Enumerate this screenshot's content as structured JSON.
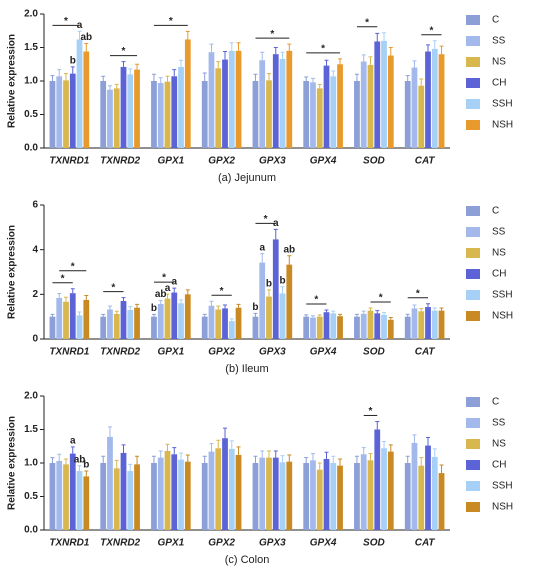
{
  "chart_data": [
    {
      "type": "bar",
      "title": "(a) Jejunum",
      "ylabel": "Relative expression",
      "categories": [
        "TXNRD1",
        "TXNRD2",
        "GPX1",
        "GPX2",
        "GPX3",
        "GPX4",
        "SOD",
        "CAT"
      ],
      "ylim": [
        0,
        2
      ],
      "yticks": [
        {
          "value": 0,
          "label": "0.0"
        },
        {
          "value": 0.5,
          "label": "0.5"
        },
        {
          "value": 1,
          "label": "1.0"
        },
        {
          "value": 1.5,
          "label": "1.5"
        },
        {
          "value": 2,
          "label": "2.0"
        }
      ],
      "series": [
        {
          "name": "C",
          "color": "#8c9fd6",
          "values": [
            1.0,
            1.0,
            1.0,
            1.0,
            1.0,
            1.0,
            1.0,
            1.0
          ],
          "errors": [
            0.08,
            0.07,
            0.1,
            0.12,
            0.1,
            0.06,
            0.1,
            0.08
          ]
        },
        {
          "name": "SS",
          "color": "#a3b9ec",
          "values": [
            1.07,
            0.87,
            0.97,
            1.43,
            1.31,
            0.98,
            1.29,
            1.2
          ],
          "errors": [
            0.1,
            0.06,
            0.08,
            0.12,
            0.12,
            0.06,
            0.1,
            0.1
          ]
        },
        {
          "name": "NS",
          "color": "#d8b84e",
          "values": [
            1.01,
            0.89,
            0.99,
            1.19,
            1.01,
            0.89,
            1.24,
            0.93
          ],
          "errors": [
            0.1,
            0.06,
            0.08,
            0.1,
            0.1,
            0.06,
            0.12,
            0.1
          ]
        },
        {
          "name": "CH",
          "color": "#5b63d6",
          "values": [
            1.11,
            1.21,
            1.07,
            1.32,
            1.4,
            1.23,
            1.59,
            1.44
          ],
          "errors": [
            0.1,
            0.08,
            0.1,
            0.12,
            0.1,
            0.08,
            0.12,
            0.1
          ]
        },
        {
          "name": "SSH",
          "color": "#a6d0f5",
          "values": [
            1.62,
            1.1,
            1.21,
            1.45,
            1.33,
            1.07,
            1.6,
            1.48
          ],
          "errors": [
            0.12,
            0.08,
            0.1,
            0.12,
            0.1,
            0.08,
            0.12,
            0.12
          ]
        },
        {
          "name": "NSH",
          "color": "#e89a2c",
          "values": [
            1.44,
            1.17,
            1.62,
            1.45,
            1.45,
            1.25,
            1.38,
            1.4
          ],
          "errors": [
            0.12,
            0.08,
            0.12,
            0.12,
            0.1,
            0.08,
            0.12,
            0.12
          ]
        }
      ],
      "annotations": [
        {
          "text": "*",
          "category": "TXNRD1",
          "from": "C",
          "to": "SSH"
        },
        {
          "text": "a",
          "category": "TXNRD1",
          "series": "SSH"
        },
        {
          "text": "ab",
          "category": "TXNRD1",
          "series": "NSH"
        },
        {
          "text": "b",
          "category": "TXNRD1",
          "series": "CH"
        },
        {
          "text": "*",
          "category": "TXNRD2",
          "from": "SS",
          "to": "NSH"
        },
        {
          "text": "*",
          "category": "GPX1",
          "from": "C",
          "to": "NSH"
        },
        {
          "text": "*",
          "category": "GPX3",
          "from": "C",
          "to": "NSH"
        },
        {
          "text": "*",
          "category": "GPX4",
          "from": "C",
          "to": "NSH"
        },
        {
          "text": "*",
          "category": "SOD",
          "from": "C",
          "to": "CH"
        },
        {
          "text": "*",
          "category": "CAT",
          "from": "NS",
          "to": "NSH"
        }
      ]
    },
    {
      "type": "bar",
      "title": "(b) Ileum",
      "ylabel": "Relative expression",
      "categories": [
        "TXNRD1",
        "TXNRD2",
        "GPX1",
        "GPX2",
        "GPX3",
        "GPX4",
        "SOD",
        "CAT"
      ],
      "ylim": [
        0,
        6
      ],
      "yticks": [
        0,
        2,
        4,
        6
      ],
      "series": [
        {
          "name": "C",
          "color": "#8c9fd6",
          "values": [
            1.0,
            1.0,
            1.0,
            1.0,
            1.0,
            1.0,
            1.0,
            1.0
          ],
          "errors": [
            0.1,
            0.1,
            0.1,
            0.1,
            0.15,
            0.08,
            0.1,
            0.1
          ]
        },
        {
          "name": "SS",
          "color": "#a3b9ec",
          "values": [
            1.84,
            1.32,
            1.57,
            1.49,
            3.42,
            0.96,
            1.13,
            1.37
          ],
          "errors": [
            0.2,
            0.15,
            0.15,
            0.2,
            0.4,
            0.08,
            0.12,
            0.15
          ]
        },
        {
          "name": "NS",
          "color": "#d8b84e",
          "values": [
            1.67,
            1.12,
            1.81,
            1.32,
            1.9,
            1.0,
            1.27,
            1.24
          ],
          "errors": [
            0.2,
            0.12,
            0.2,
            0.15,
            0.3,
            0.08,
            0.12,
            0.12
          ]
        },
        {
          "name": "CH",
          "color": "#5b63d6",
          "values": [
            2.05,
            1.7,
            2.08,
            1.37,
            4.46,
            1.2,
            1.15,
            1.43
          ],
          "errors": [
            0.2,
            0.15,
            0.2,
            0.15,
            0.45,
            0.1,
            0.12,
            0.15
          ]
        },
        {
          "name": "SSH",
          "color": "#a6d0f5",
          "values": [
            1.06,
            1.3,
            1.6,
            0.8,
            2.04,
            1.15,
            1.08,
            1.27
          ],
          "errors": [
            0.15,
            0.15,
            0.15,
            0.1,
            0.3,
            0.1,
            0.1,
            0.12
          ]
        },
        {
          "name": "NSH",
          "color": "#c98a24",
          "values": [
            1.75,
            1.4,
            2.0,
            1.4,
            3.33,
            1.02,
            0.86,
            1.27
          ],
          "errors": [
            0.2,
            0.15,
            0.2,
            0.15,
            0.4,
            0.08,
            0.1,
            0.12
          ]
        }
      ],
      "annotations": [
        {
          "text": "*",
          "category": "TXNRD1",
          "from": "C",
          "to": "CH"
        },
        {
          "text": "*",
          "category": "TXNRD1",
          "from": "SS",
          "to": "NSH"
        },
        {
          "text": "*",
          "category": "TXNRD2",
          "from": "C",
          "to": "CH"
        },
        {
          "text": "*",
          "category": "GPX1",
          "from": "C",
          "to": "CH"
        },
        {
          "text": "b",
          "category": "GPX1",
          "series": "C"
        },
        {
          "text": "ab",
          "category": "GPX1",
          "series": "SS"
        },
        {
          "text": "a",
          "category": "GPX1",
          "series": "NS"
        },
        {
          "text": "a",
          "category": "GPX1",
          "series": "CH"
        },
        {
          "text": "*",
          "category": "GPX2",
          "from": "SS",
          "to": "SSH"
        },
        {
          "text": "*",
          "category": "GPX3",
          "from": "C",
          "to": "CH"
        },
        {
          "text": "b",
          "category": "GPX3",
          "series": "C"
        },
        {
          "text": "a",
          "category": "GPX3",
          "series": "SS"
        },
        {
          "text": "b",
          "category": "GPX3",
          "series": "NS"
        },
        {
          "text": "a",
          "category": "GPX3",
          "series": "CH"
        },
        {
          "text": "b",
          "category": "GPX3",
          "series": "SSH"
        },
        {
          "text": "ab",
          "category": "GPX3",
          "series": "NSH"
        },
        {
          "text": "*",
          "category": "GPX4",
          "from": "C",
          "to": "CH"
        },
        {
          "text": "*",
          "category": "SOD",
          "from": "NS",
          "to": "NSH"
        },
        {
          "text": "*",
          "category": "CAT",
          "from": "C",
          "to": "CH"
        }
      ]
    },
    {
      "type": "bar",
      "title": "(c) Colon",
      "ylabel": "Relative expression",
      "categories": [
        "TXNRD1",
        "TXNRD2",
        "GPX1",
        "GPX2",
        "GPX3",
        "GPX4",
        "SOD",
        "CAT"
      ],
      "ylim": [
        0,
        2
      ],
      "yticks": [
        {
          "value": 0,
          "label": "0.0"
        },
        {
          "value": 0.5,
          "label": "0.5"
        },
        {
          "value": 1,
          "label": "1.0"
        },
        {
          "value": 1.5,
          "label": "1.5"
        },
        {
          "value": 2,
          "label": "2.0"
        }
      ],
      "series": [
        {
          "name": "C",
          "color": "#8c9fd6",
          "values": [
            1.0,
            1.0,
            1.0,
            1.0,
            1.0,
            1.0,
            1.0,
            1.0
          ],
          "errors": [
            0.08,
            0.1,
            0.1,
            0.1,
            0.1,
            0.08,
            0.1,
            0.1
          ]
        },
        {
          "name": "SS",
          "color": "#a3b9ec",
          "values": [
            1.03,
            1.39,
            1.08,
            1.17,
            1.08,
            1.04,
            1.13,
            1.3
          ],
          "errors": [
            0.1,
            0.15,
            0.1,
            0.12,
            0.1,
            0.1,
            0.1,
            0.12
          ]
        },
        {
          "name": "NS",
          "color": "#d8b84e",
          "values": [
            0.98,
            0.92,
            1.18,
            1.22,
            1.08,
            0.9,
            1.04,
            0.96
          ],
          "errors": [
            0.08,
            0.12,
            0.1,
            0.12,
            0.1,
            0.1,
            0.1,
            0.12
          ]
        },
        {
          "name": "CH",
          "color": "#5b63d6",
          "values": [
            1.14,
            1.15,
            1.13,
            1.37,
            1.08,
            1.06,
            1.5,
            1.26
          ],
          "errors": [
            0.1,
            0.12,
            0.1,
            0.15,
            0.1,
            0.1,
            0.12,
            0.12
          ]
        },
        {
          "name": "SSH",
          "color": "#a6d0f5",
          "values": [
            0.88,
            0.88,
            1.05,
            1.21,
            1.01,
            1.0,
            1.22,
            1.09
          ],
          "errors": [
            0.08,
            0.1,
            0.1,
            0.12,
            0.1,
            0.1,
            0.1,
            0.12
          ]
        },
        {
          "name": "NSH",
          "color": "#c98a24",
          "values": [
            0.8,
            0.98,
            1.02,
            1.12,
            1.02,
            0.96,
            1.17,
            0.85
          ],
          "errors": [
            0.08,
            0.12,
            0.1,
            0.12,
            0.1,
            0.1,
            0.1,
            0.12
          ]
        }
      ],
      "annotations": [
        {
          "text": "a",
          "category": "TXNRD1",
          "series": "CH"
        },
        {
          "text": "ab",
          "category": "TXNRD1",
          "series": "SSH"
        },
        {
          "text": "b",
          "category": "TXNRD1",
          "series": "NSH"
        },
        {
          "text": "*",
          "category": "SOD",
          "from": "SS",
          "to": "CH"
        }
      ]
    }
  ]
}
